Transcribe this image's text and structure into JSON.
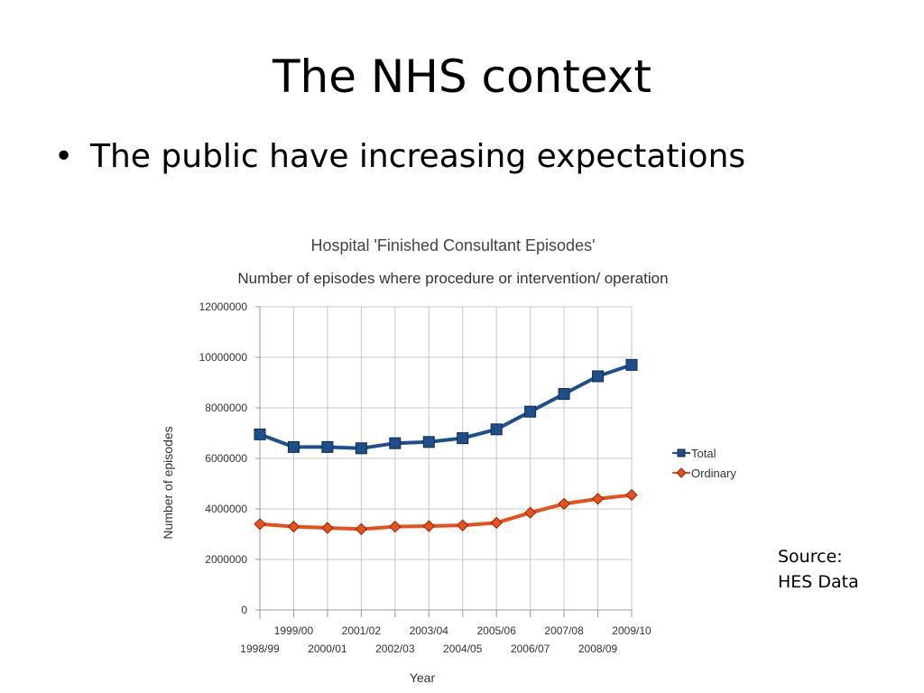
{
  "slide": {
    "title": "The NHS context",
    "bullet_marker": "•",
    "bullet": "The public have increasing expectations",
    "source_line1": "Source:",
    "source_line2": "HES Data"
  },
  "chart_data": {
    "type": "line",
    "title": "Hospital 'Finished Consultant Episodes'",
    "subtitle": "Number of episodes where procedure or intervention/ operation",
    "xlabel": "Year",
    "ylabel": "Number of episodes",
    "categories": [
      "1998/99",
      "1999/00",
      "2000/01",
      "2001/02",
      "2002/03",
      "2003/04",
      "2004/05",
      "2005/06",
      "2006/07",
      "2007/08",
      "2008/09",
      "2009/10"
    ],
    "ylim": [
      0,
      12000000
    ],
    "yticks": [
      "0",
      "2000000",
      "4000000",
      "6000000",
      "8000000",
      "10000000",
      "12000000"
    ],
    "grid": true,
    "legend_position": "right",
    "series": [
      {
        "name": "Total",
        "color": "#1f4e8c",
        "marker": "square",
        "values": [
          6950000,
          6450000,
          6450000,
          6400000,
          6600000,
          6650000,
          6800000,
          7150000,
          7850000,
          8550000,
          9250000,
          9700000
        ]
      },
      {
        "name": "Ordinary",
        "color": "#e8501c",
        "marker": "diamond",
        "values": [
          3400000,
          3300000,
          3250000,
          3200000,
          3300000,
          3320000,
          3350000,
          3450000,
          3850000,
          4200000,
          4400000,
          4550000
        ]
      }
    ]
  }
}
